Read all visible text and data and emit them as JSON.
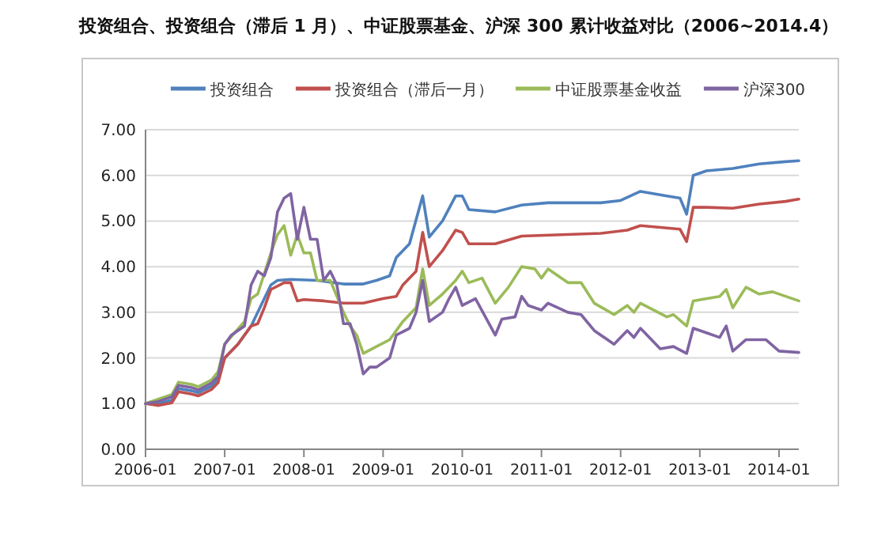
{
  "chart_data": {
    "type": "line",
    "title": "投资组合、投资组合（滞后 1 月）、中证股票基金、沪深 300 累计收益对比（2006~2014.4）",
    "legend": "top",
    "grid": "y",
    "marker": "none",
    "line_style": "solid",
    "xlim": [
      "2006-01",
      "2014-04"
    ],
    "xticks": [
      "2006-01",
      "2007-01",
      "2008-01",
      "2009-01",
      "2010-01",
      "2011-01",
      "2012-01",
      "2013-01",
      "2014-01"
    ],
    "ylim": [
      0,
      7
    ],
    "yticks": [
      {
        "value": 0,
        "label": "0.00"
      },
      {
        "value": 1,
        "label": "1.00"
      },
      {
        "value": 2,
        "label": "2.00"
      },
      {
        "value": 3,
        "label": "3.00"
      },
      {
        "value": 4,
        "label": "4.00"
      },
      {
        "value": 5,
        "label": "5.00"
      },
      {
        "value": 6,
        "label": "6.00"
      },
      {
        "value": 7,
        "label": "7.00"
      }
    ],
    "series": [
      {
        "name": "投资组合",
        "color": "#4f81bd",
        "x": [
          "2006-01",
          "2006-03",
          "2006-05",
          "2006-06",
          "2006-08",
          "2006-09",
          "2006-11",
          "2006-12",
          "2007-01",
          "2007-03",
          "2007-05",
          "2007-07",
          "2007-08",
          "2007-09",
          "2007-11",
          "2008-03",
          "2008-07",
          "2008-10",
          "2008-12",
          "2009-02",
          "2009-03",
          "2009-05",
          "2009-07",
          "2009-08",
          "2009-10",
          "2009-12",
          "2010-01",
          "2010-02",
          "2010-06",
          "2010-10",
          "2011-02",
          "2011-10",
          "2012-01",
          "2012-04",
          "2012-08",
          "2012-10",
          "2012-11",
          "2012-12",
          "2013-02",
          "2013-06",
          "2013-10",
          "2014-02",
          "2014-04"
        ],
        "values": [
          1.0,
          1.0,
          1.08,
          1.33,
          1.28,
          1.24,
          1.38,
          1.53,
          2.0,
          2.3,
          2.7,
          3.3,
          3.6,
          3.7,
          3.72,
          3.7,
          3.62,
          3.62,
          3.7,
          3.8,
          4.2,
          4.5,
          5.55,
          4.65,
          5.0,
          5.55,
          5.55,
          5.25,
          5.2,
          5.35,
          5.4,
          5.4,
          5.45,
          5.65,
          5.55,
          5.5,
          5.15,
          6.0,
          6.1,
          6.15,
          6.25,
          6.3,
          6.32
        ]
      },
      {
        "name": "投资组合（滞后一月）",
        "color": "#c0504d",
        "x": [
          "2006-01",
          "2006-03",
          "2006-05",
          "2006-06",
          "2006-08",
          "2006-09",
          "2006-11",
          "2006-12",
          "2007-01",
          "2007-03",
          "2007-05",
          "2007-06",
          "2007-07",
          "2007-08",
          "2007-10",
          "2007-11",
          "2007-12",
          "2008-01",
          "2008-04",
          "2008-07",
          "2008-10",
          "2009-01",
          "2009-03",
          "2009-04",
          "2009-06",
          "2009-07",
          "2009-08",
          "2009-10",
          "2009-12",
          "2010-01",
          "2010-02",
          "2010-06",
          "2010-10",
          "2011-10",
          "2012-02",
          "2012-04",
          "2012-10",
          "2012-11",
          "2012-12",
          "2013-02",
          "2013-06",
          "2013-10",
          "2014-02",
          "2014-04"
        ],
        "values": [
          1.0,
          0.96,
          1.02,
          1.26,
          1.21,
          1.17,
          1.31,
          1.46,
          2.0,
          2.3,
          2.7,
          2.75,
          3.1,
          3.5,
          3.65,
          3.65,
          3.25,
          3.28,
          3.25,
          3.2,
          3.2,
          3.3,
          3.35,
          3.6,
          3.9,
          4.75,
          4.0,
          4.35,
          4.8,
          4.75,
          4.5,
          4.5,
          4.67,
          4.73,
          4.8,
          4.9,
          4.82,
          4.55,
          5.3,
          5.3,
          5.28,
          5.37,
          5.43,
          5.48
        ]
      },
      {
        "name": "中证股票基金收益",
        "color": "#9bbb59",
        "x": [
          "2006-01",
          "2006-03",
          "2006-05",
          "2006-06",
          "2006-08",
          "2006-09",
          "2006-11",
          "2006-12",
          "2007-01",
          "2007-04",
          "2007-05",
          "2007-06",
          "2007-08",
          "2007-09",
          "2007-10",
          "2007-11",
          "2007-12",
          "2008-01",
          "2008-02",
          "2008-03",
          "2008-05",
          "2008-07",
          "2008-08",
          "2008-09",
          "2008-10",
          "2008-12",
          "2009-02",
          "2009-04",
          "2009-06",
          "2009-07",
          "2009-08",
          "2009-10",
          "2009-12",
          "2010-01",
          "2010-02",
          "2010-04",
          "2010-06",
          "2010-08",
          "2010-10",
          "2010-12",
          "2011-01",
          "2011-02",
          "2011-05",
          "2011-07",
          "2011-09",
          "2011-12",
          "2012-02",
          "2012-03",
          "2012-04",
          "2012-08",
          "2012-09",
          "2012-11",
          "2012-12",
          "2013-04",
          "2013-05",
          "2013-06",
          "2013-08",
          "2013-10",
          "2013-12",
          "2014-04"
        ],
        "values": [
          1.0,
          1.1,
          1.2,
          1.47,
          1.42,
          1.37,
          1.52,
          1.7,
          2.3,
          2.8,
          3.3,
          3.4,
          4.3,
          4.7,
          4.9,
          4.25,
          4.7,
          4.3,
          4.3,
          3.7,
          3.7,
          3.0,
          2.7,
          2.5,
          2.1,
          2.25,
          2.4,
          2.8,
          3.1,
          3.95,
          3.15,
          3.4,
          3.7,
          3.9,
          3.65,
          3.75,
          3.2,
          3.55,
          4.0,
          3.95,
          3.75,
          3.95,
          3.65,
          3.65,
          3.2,
          2.95,
          3.15,
          3.0,
          3.2,
          2.9,
          2.95,
          2.7,
          3.25,
          3.35,
          3.5,
          3.1,
          3.55,
          3.4,
          3.45,
          3.25
        ]
      },
      {
        "name": "沪深300",
        "color": "#8064a2",
        "x": [
          "2006-01",
          "2006-03",
          "2006-05",
          "2006-06",
          "2006-08",
          "2006-09",
          "2006-11",
          "2006-12",
          "2007-01",
          "2007-02",
          "2007-04",
          "2007-05",
          "2007-06",
          "2007-07",
          "2007-08",
          "2007-09",
          "2007-10",
          "2007-11",
          "2007-12",
          "2008-01",
          "2008-02",
          "2008-03",
          "2008-04",
          "2008-05",
          "2008-06",
          "2008-07",
          "2008-08",
          "2008-09",
          "2008-10",
          "2008-11",
          "2008-12",
          "2009-02",
          "2009-03",
          "2009-05",
          "2009-06",
          "2009-07",
          "2009-08",
          "2009-10",
          "2009-11",
          "2009-12",
          "2010-01",
          "2010-03",
          "2010-06",
          "2010-07",
          "2010-09",
          "2010-10",
          "2010-11",
          "2011-01",
          "2011-02",
          "2011-05",
          "2011-07",
          "2011-09",
          "2011-12",
          "2012-02",
          "2012-03",
          "2012-04",
          "2012-07",
          "2012-09",
          "2012-11",
          "2012-12",
          "2013-02",
          "2013-04",
          "2013-05",
          "2013-06",
          "2013-08",
          "2013-11",
          "2014-01",
          "2014-04"
        ],
        "values": [
          1.0,
          1.05,
          1.15,
          1.4,
          1.35,
          1.3,
          1.45,
          1.6,
          2.3,
          2.5,
          2.7,
          3.6,
          3.9,
          3.8,
          4.2,
          5.2,
          5.5,
          5.6,
          4.6,
          5.3,
          4.6,
          4.6,
          3.7,
          3.9,
          3.6,
          2.75,
          2.75,
          2.3,
          1.65,
          1.8,
          1.8,
          2.0,
          2.5,
          2.65,
          3.0,
          3.7,
          2.8,
          3.0,
          3.3,
          3.55,
          3.15,
          3.3,
          2.5,
          2.85,
          2.9,
          3.35,
          3.15,
          3.05,
          3.2,
          3.0,
          2.95,
          2.6,
          2.3,
          2.6,
          2.45,
          2.65,
          2.2,
          2.25,
          2.1,
          2.65,
          2.55,
          2.45,
          2.7,
          2.15,
          2.4,
          2.4,
          2.15,
          2.12
        ]
      }
    ]
  }
}
